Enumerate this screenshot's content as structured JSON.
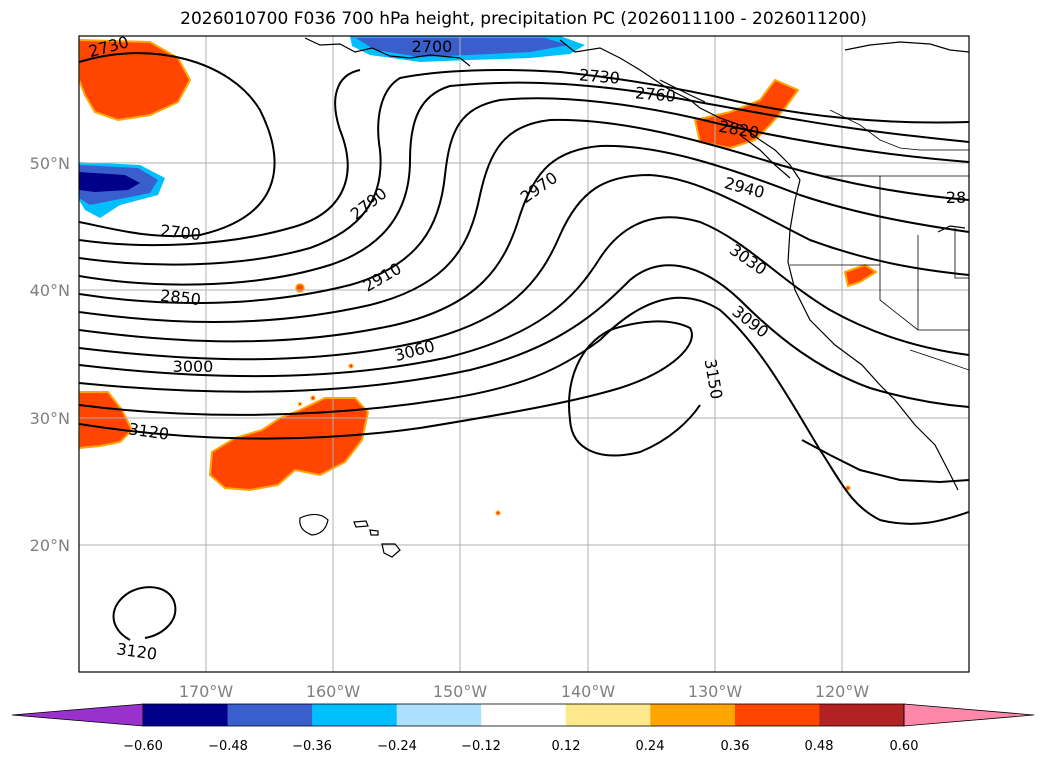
{
  "title": "2026010700 F036 700 hPa height, precipitation PC (2026011100 - 2026011200)",
  "axes": {
    "lat_labels": [
      "50°N",
      "40°N",
      "30°N",
      "20°N"
    ],
    "lon_labels": [
      "170°W",
      "160°W",
      "150°W",
      "140°W",
      "130°W",
      "120°W"
    ],
    "grid": true
  },
  "contour_labels": [
    "2730",
    "2700",
    "2730",
    "2760",
    "2820",
    "2790",
    "2970",
    "2940",
    "2700",
    "2910",
    "3030",
    "2850",
    "3090",
    "3060",
    "3150",
    "3000",
    "3120",
    "3120",
    "28"
  ],
  "colorbar": {
    "ticks": [
      "−0.60",
      "−0.48",
      "−0.36",
      "−0.24",
      "−0.12",
      "0.12",
      "0.24",
      "0.36",
      "0.48",
      "0.60"
    ],
    "colors": [
      "#9932CC",
      "#00008B",
      "#3A5FCD",
      "#00BFFF",
      "#ADDFFF",
      "#FFFFFF",
      "#FFE88C",
      "#FFA500",
      "#FF4500",
      "#B22222",
      "#FF88AA"
    ]
  }
}
